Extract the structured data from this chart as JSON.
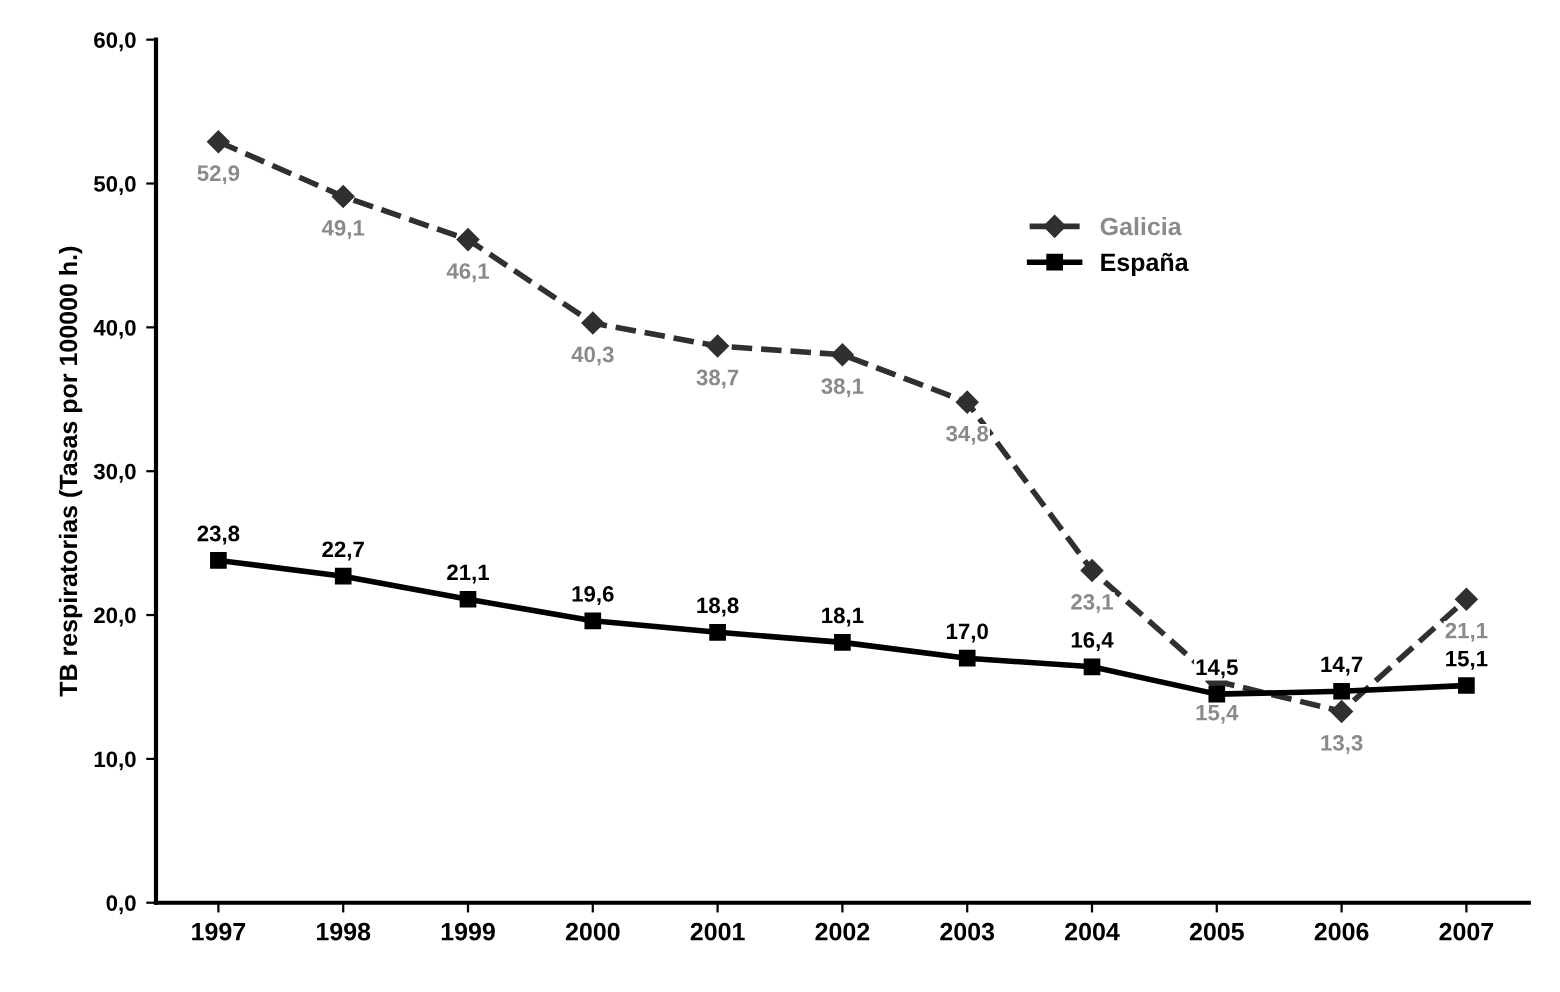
{
  "chart_data": {
    "type": "line",
    "ylabel": "TB respiratorias (Tasas por 100000 h.)",
    "categories": [
      "1997",
      "1998",
      "1999",
      "2000",
      "2001",
      "2002",
      "2003",
      "2004",
      "2005",
      "2006",
      "2007"
    ],
    "series": [
      {
        "name": "Galicia",
        "color": "#303030",
        "marker": "diamond",
        "line_style": "dashed",
        "values": [
          52.9,
          49.1,
          46.1,
          40.3,
          38.7,
          38.1,
          34.8,
          23.1,
          15.4,
          13.3,
          21.1
        ],
        "value_labels": [
          "52,9",
          "49,1",
          "46,1",
          "40,3",
          "38,7",
          "38,1",
          "34,8",
          "23,1",
          "15,4",
          "13,3",
          "21,1"
        ]
      },
      {
        "name": "España",
        "color": "#000000",
        "marker": "square",
        "line_style": "solid",
        "values": [
          23.8,
          22.7,
          21.1,
          19.6,
          18.8,
          18.1,
          17.0,
          16.4,
          14.5,
          14.7,
          15.1
        ],
        "value_labels": [
          "23,8",
          "22,7",
          "21,1",
          "19,6",
          "18,8",
          "18,1",
          "17,0",
          "16,4",
          "14,5",
          "14,7",
          "15,1"
        ]
      }
    ],
    "ylim": [
      0,
      60
    ],
    "yticks": [
      {
        "value": 0,
        "label": "0,0"
      },
      {
        "value": 10,
        "label": "10,0"
      },
      {
        "value": 20,
        "label": "20,0"
      },
      {
        "value": 30,
        "label": "30,0"
      },
      {
        "value": 40,
        "label": "40,0"
      },
      {
        "value": 50,
        "label": "50,0"
      },
      {
        "value": 60,
        "label": "60,0"
      }
    ],
    "grid": false,
    "legend": "top right"
  }
}
